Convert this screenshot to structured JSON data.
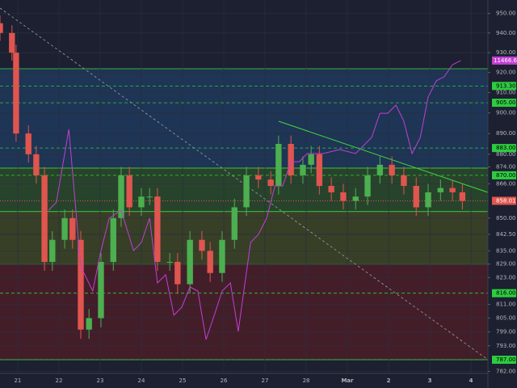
{
  "chart_data": {
    "type": "candlestick",
    "xlim": [
      20.57,
      32.41
    ],
    "xticks": [
      21,
      22,
      23,
      24,
      25,
      26,
      27,
      28,
      {
        "value": 29,
        "label": "Mar"
      },
      {
        "value": 30,
        "label": "2"
      },
      {
        "value": 31,
        "label": "3"
      },
      {
        "value": 32,
        "label": "4"
      }
    ],
    "ylim": [
      775,
      957
    ],
    "log_scale": true,
    "grid": true,
    "yticks": [
      {
        "value": 950,
        "label": "950.00"
      },
      {
        "value": 940,
        "label": "940.00"
      },
      {
        "value": 930,
        "label": "930.00"
      },
      {
        "value": 920,
        "label": "920.00"
      },
      {
        "value": 910,
        "label": "910.00"
      },
      {
        "value": 900,
        "label": "900.00"
      },
      {
        "value": 890,
        "label": "890.00"
      },
      {
        "value": 880,
        "label": "880.00"
      },
      {
        "value": 874,
        "label": "874.00"
      },
      {
        "value": 866,
        "label": "866.00"
      },
      {
        "value": 850,
        "label": "850.00"
      },
      {
        "value": 842.5,
        "label": "842.50"
      },
      {
        "value": 835,
        "label": "835.00"
      },
      {
        "value": 829,
        "label": "829.00"
      },
      {
        "value": 823,
        "label": "823.00"
      },
      {
        "value": 811,
        "label": "811.00"
      },
      {
        "value": 805,
        "label": "805.00"
      },
      {
        "value": 799,
        "label": "799.00"
      },
      {
        "value": 793,
        "label": "793.00"
      },
      {
        "value": 782,
        "label": "782.00"
      }
    ],
    "levels": [
      {
        "value": 913.3,
        "label": "913.30"
      },
      {
        "value": 905,
        "label": "905.00"
      },
      {
        "value": 883,
        "label": "883.00"
      },
      {
        "value": 870,
        "label": "870.00"
      },
      {
        "value": 816,
        "label": "816.00"
      },
      {
        "value": 787,
        "label": "787.00"
      }
    ],
    "level_color": "#2ecc40",
    "zones": [
      {
        "from": 921.9,
        "to": 873.4,
        "color": "#1f3a5c"
      },
      {
        "from": 873.4,
        "to": 853,
        "color": "#2a4a2a"
      },
      {
        "from": 853,
        "to": 829,
        "color": "#3d4526"
      },
      {
        "from": 829,
        "to": 787,
        "color": "#4a1f28"
      }
    ],
    "y2lim": [
      9610,
      11810
    ],
    "series": [
      {
        "type": "candlestick",
        "color_up": "#4caf50",
        "color_down": "#e0554f",
        "x": [
          20.57,
          20.86,
          20.96,
          21.26,
          21.45,
          21.65,
          21.84,
          22.14,
          22.33,
          22.53,
          22.73,
          23.02,
          23.32,
          23.51,
          23.71,
          24.0,
          24.2,
          24.39,
          24.69,
          24.88,
          25.18,
          25.47,
          25.67,
          25.96,
          26.26,
          26.55,
          26.84,
          27.14,
          27.33,
          27.63,
          27.92,
          28.12,
          28.32,
          28.61,
          28.9,
          29.2,
          29.49,
          29.79,
          30.08,
          30.37,
          30.67,
          30.96,
          31.26,
          31.55,
          31.79
        ],
        "open": [
          945,
          940,
          930,
          890,
          880,
          870,
          830,
          840,
          850,
          840,
          800,
          805,
          830,
          850,
          870,
          855,
          860,
          860,
          830,
          830,
          820,
          840,
          835,
          825,
          840,
          855,
          870,
          868,
          865,
          885,
          870,
          875,
          880,
          865,
          862,
          858,
          860,
          870,
          875,
          870,
          865,
          855,
          862,
          864,
          862
        ],
        "high": [
          949,
          944,
          934,
          894,
          884,
          874,
          844,
          854,
          854,
          844,
          809,
          834,
          854,
          874,
          874,
          864,
          864,
          864,
          834,
          834,
          844,
          844,
          839,
          844,
          859,
          874,
          874,
          872,
          889,
          889,
          879,
          884,
          884,
          869,
          866,
          864,
          874,
          879,
          879,
          874,
          869,
          866,
          868,
          868,
          866
        ],
        "low": [
          936,
          926,
          886,
          876,
          866,
          826,
          826,
          836,
          836,
          796,
          796,
          801,
          826,
          846,
          851,
          851,
          856,
          826,
          826,
          816,
          816,
          831,
          821,
          821,
          836,
          851,
          864,
          861,
          861,
          866,
          866,
          871,
          861,
          858,
          854,
          854,
          856,
          866,
          866,
          861,
          851,
          851,
          858,
          858,
          854
        ],
        "close": [
          940,
          930,
          890,
          880,
          870,
          830,
          840,
          850,
          840,
          800,
          805,
          830,
          850,
          870,
          855,
          860,
          860,
          830,
          830,
          820,
          840,
          835,
          825,
          840,
          855,
          870,
          868,
          865,
          885,
          870,
          875,
          880,
          865,
          862,
          858,
          860,
          870,
          875,
          870,
          865,
          855,
          862,
          864,
          862,
          858.01
        ],
        "last_color": "#e0554f"
      },
      {
        "type": "line",
        "axis": "y2",
        "color": "#c23fd4",
        "x": [
          21.75,
          21.94,
          22.24,
          22.53,
          22.82,
          23.02,
          23.22,
          23.51,
          23.81,
          24.0,
          24.2,
          24.39,
          24.59,
          24.79,
          24.98,
          25.18,
          25.37,
          25.57,
          25.77,
          25.96,
          26.16,
          26.35,
          26.65,
          26.84,
          27.04,
          27.24,
          27.43,
          27.63,
          27.83,
          28.02,
          28.41,
          28.81,
          29.2,
          29.59,
          29.79,
          29.98,
          30.18,
          30.37,
          30.57,
          30.77,
          30.96,
          31.16,
          31.35,
          31.55,
          31.75
        ],
        "values": [
          10618,
          10664,
          11077,
          10298,
          10160,
          10389,
          10573,
          10618,
          10389,
          10435,
          10573,
          10206,
          10252,
          10023,
          10068,
          10183,
          10160,
          9885,
          10023,
          10160,
          10206,
          9931,
          10435,
          10481,
          10573,
          10756,
          10756,
          10893,
          10893,
          10939,
          10939,
          10962,
          10939,
          11031,
          11168,
          11168,
          11214,
          11123,
          10939,
          11031,
          11260,
          11352,
          11375,
          11443,
          11466.6
        ]
      }
    ]
  }
}
